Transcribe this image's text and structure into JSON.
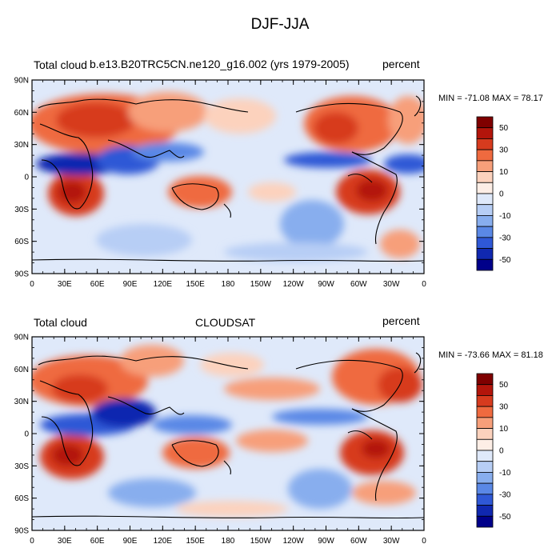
{
  "title": "DJF-JJA",
  "panels": [
    {
      "left_label": "Total cloud",
      "center_label": "b.e13.B20TRC5CN.ne120_g16.002 (yrs 1979-2005)",
      "right_label": "percent",
      "min_max": "MIN = -71.08 MAX =  78.17",
      "lat_ticks": [
        "90N",
        "60N",
        "30N",
        "0",
        "30S",
        "60S",
        "90S"
      ],
      "lon_ticks": [
        "0",
        "30E",
        "60E",
        "90E",
        "120E",
        "150E",
        "180",
        "150W",
        "120W",
        "90W",
        "60W",
        "30W",
        "0"
      ],
      "colorbar_labels": [
        "50",
        "30",
        "10",
        "0",
        "-10",
        "-30",
        "-50"
      ]
    },
    {
      "left_label": "Total cloud",
      "center_label": "CLOUDSAT",
      "right_label": "percent",
      "min_max": "MIN = -73.66 MAX =  81.18",
      "lat_ticks": [
        "90N",
        "60N",
        "30N",
        "0",
        "30S",
        "60S",
        "90S"
      ],
      "lon_ticks": [
        "0",
        "30E",
        "60E",
        "90E",
        "120E",
        "150E",
        "180",
        "150W",
        "120W",
        "90W",
        "60W",
        "30W",
        "0"
      ],
      "colorbar_labels": [
        "50",
        "30",
        "10",
        "0",
        "-10",
        "-30",
        "-50"
      ]
    }
  ],
  "colorbar_colors": [
    "#7f0000",
    "#b3150b",
    "#d73b1e",
    "#ef6a3f",
    "#f79f7a",
    "#fcd2bd",
    "#fdeee6",
    "#dfe9fa",
    "#b7cef5",
    "#88aeee",
    "#5a88e6",
    "#2f58d6",
    "#1028b0",
    "#00008a"
  ]
}
